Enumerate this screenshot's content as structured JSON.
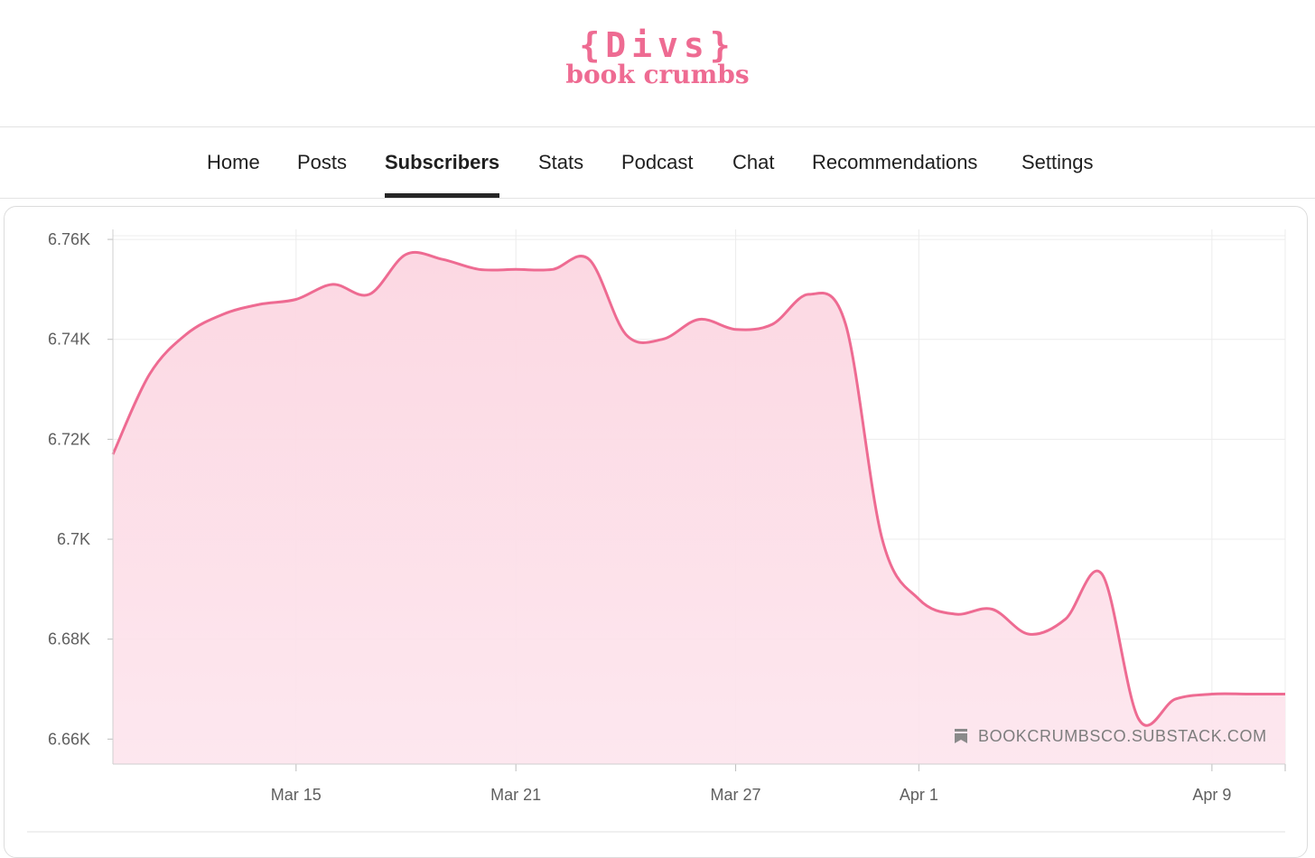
{
  "brand": {
    "logo_line1": "{Divs}",
    "logo_line2": "book crumbs",
    "accent_color": "#ee6b92"
  },
  "nav": {
    "tabs": [
      {
        "label": "Home",
        "active": false
      },
      {
        "label": "Posts",
        "active": false
      },
      {
        "label": "Subscribers",
        "active": true
      },
      {
        "label": "Stats",
        "active": false
      },
      {
        "label": "Podcast",
        "active": false
      },
      {
        "label": "Chat",
        "active": false
      },
      {
        "label": "Recommendations",
        "active": false
      },
      {
        "label": "Settings",
        "active": false
      }
    ]
  },
  "watermark": {
    "text": "BOOKCRUMBSCO.SUBSTACK.COM",
    "icon": "bookmark-icon"
  },
  "chart_data": {
    "type": "area",
    "title": "",
    "xlabel": "",
    "ylabel": "",
    "ylim": [
      6655,
      6762
    ],
    "y_ticks": [
      6660,
      6680,
      6700,
      6720,
      6740,
      6760
    ],
    "y_tick_labels": [
      "6.66K",
      "6.68K",
      "6.7K",
      "6.72K",
      "6.74K",
      "6.76K"
    ],
    "x_ticks": [
      {
        "label": "Mar 15",
        "x": "2024-03-15"
      },
      {
        "label": "Mar 21",
        "x": "2024-03-21"
      },
      {
        "label": "Mar 27",
        "x": "2024-03-27"
      },
      {
        "label": "Apr 1",
        "x": "2024-04-01"
      },
      {
        "label": "Apr 9",
        "x": "2024-04-09"
      }
    ],
    "xlim": [
      "2024-03-10",
      "2024-04-11"
    ],
    "grid": true,
    "line_color": "#ee6b92",
    "fill_color": "#fde0e8",
    "series": [
      {
        "x": [
          "2024-03-10",
          "2024-03-11",
          "2024-03-12",
          "2024-03-13",
          "2024-03-14",
          "2024-03-15",
          "2024-03-16",
          "2024-03-17",
          "2024-03-18",
          "2024-03-19",
          "2024-03-20",
          "2024-03-21",
          "2024-03-22",
          "2024-03-23",
          "2024-03-24",
          "2024-03-25",
          "2024-03-26",
          "2024-03-27",
          "2024-03-28",
          "2024-03-29",
          "2024-03-30",
          "2024-03-31",
          "2024-04-01",
          "2024-04-02",
          "2024-04-03",
          "2024-04-04",
          "2024-04-05",
          "2024-04-06",
          "2024-04-07",
          "2024-04-08",
          "2024-04-09",
          "2024-04-10",
          "2024-04-11"
        ],
        "values": [
          6717,
          6733,
          6741,
          6745,
          6747,
          6748,
          6751,
          6749,
          6757,
          6756,
          6754,
          6754,
          6754,
          6756,
          6741,
          6740,
          6744,
          6742,
          6743,
          6749,
          6743,
          6700,
          6688,
          6685,
          6686,
          6681,
          6684,
          6693,
          6664,
          6668,
          6669,
          6669,
          6669
        ]
      }
    ]
  }
}
